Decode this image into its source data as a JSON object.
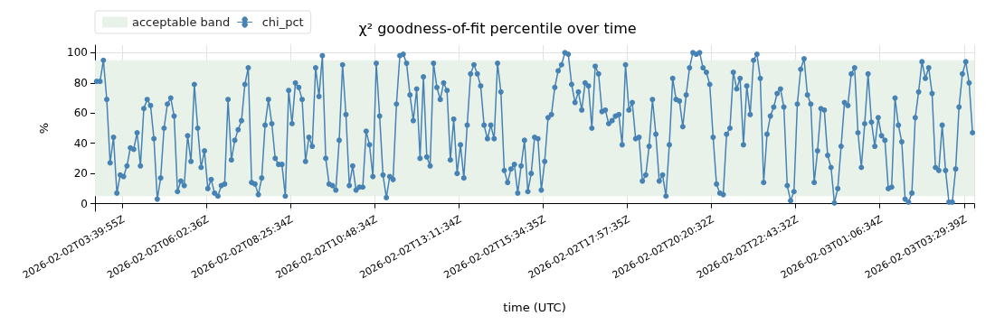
{
  "chart_data": {
    "type": "line",
    "title": "χ² goodness-of-fit percentile over time",
    "xlabel": "time (UTC)",
    "ylabel": "%",
    "categories": [
      null,
      null,
      null,
      null,
      null,
      null,
      null,
      null,
      "2026-02-02T03:39:55Z",
      null,
      null,
      null,
      null,
      null,
      null,
      null,
      null,
      null,
      null,
      null,
      null,
      null,
      null,
      null,
      null,
      null,
      null,
      null,
      null,
      null,
      null,
      null,
      null,
      "2026-02-02T06:02:36Z",
      null,
      null,
      null,
      null,
      null,
      null,
      null,
      null,
      null,
      null,
      null,
      null,
      null,
      null,
      null,
      null,
      null,
      null,
      null,
      null,
      null,
      null,
      null,
      null,
      "2026-02-02T08:25:34Z",
      null,
      null,
      null,
      null,
      null,
      null,
      null,
      null,
      null,
      null,
      null,
      null,
      null,
      null,
      null,
      null,
      null,
      null,
      null,
      null,
      null,
      null,
      null,
      null,
      "2026-02-02T10:48:34Z",
      null,
      null,
      null,
      null,
      null,
      null,
      null,
      null,
      null,
      null,
      null,
      null,
      null,
      null,
      null,
      null,
      null,
      null,
      null,
      null,
      null,
      null,
      null,
      null,
      "2026-02-02T13:11:34Z",
      null,
      null,
      null,
      null,
      null,
      null,
      null,
      null,
      null,
      null,
      null,
      null,
      null,
      null,
      null,
      null,
      null,
      null,
      null,
      null,
      null,
      null,
      null,
      null,
      "2026-02-02T15:34:35Z",
      null,
      null,
      null,
      null,
      null,
      null,
      null,
      null,
      null,
      null,
      null,
      null,
      null,
      null,
      null,
      null,
      null,
      null,
      null,
      null,
      null,
      null,
      null,
      null,
      "2026-02-02T17:57:35Z",
      null,
      null,
      null,
      null,
      null,
      null,
      null,
      null,
      null,
      null,
      null,
      null,
      null,
      null,
      null,
      null,
      null,
      null,
      null,
      null,
      null,
      null,
      null,
      null,
      "2026-02-02T20:20:32Z",
      null,
      null,
      null,
      null,
      null,
      null,
      null,
      null,
      null,
      null,
      null,
      null,
      null,
      null,
      null,
      null,
      null,
      null,
      null,
      null,
      null,
      null,
      null,
      null,
      "2026-02-02T22:43:32Z",
      null,
      null,
      null,
      null,
      null,
      null,
      null,
      null,
      null,
      null,
      null,
      null,
      null,
      null,
      null,
      null,
      null,
      null,
      null,
      null,
      null,
      null,
      null,
      null,
      "2026-02-03T01:06:34Z",
      null,
      null,
      null,
      null,
      null,
      null,
      null,
      null,
      null,
      null,
      null,
      null,
      null,
      null,
      null,
      null,
      null,
      null,
      null,
      null,
      null,
      null,
      null,
      null,
      "2026-02-03T03:29:39Z",
      null,
      null
    ],
    "series": [
      {
        "name": "chi_pct",
        "color": "#4682b4",
        "values": [
          81,
          81,
          95,
          69,
          27,
          44,
          7,
          19,
          18,
          25,
          37,
          36,
          47,
          25,
          63,
          69,
          65,
          43,
          3,
          17,
          50,
          66,
          70,
          58,
          8,
          15,
          12,
          45,
          28,
          79,
          50,
          24,
          35,
          10,
          16,
          7,
          5,
          12,
          13,
          69,
          29,
          42,
          49,
          55,
          79,
          90,
          14,
          13,
          6,
          17,
          52,
          69,
          53,
          30,
          26,
          26,
          5,
          75,
          53,
          80,
          77,
          69,
          28,
          44,
          38,
          90,
          71,
          98,
          30,
          13,
          12,
          9,
          42,
          92,
          59,
          12,
          25,
          9,
          11,
          11,
          48,
          39,
          18,
          93,
          58,
          19,
          4,
          18,
          16,
          66,
          98,
          99,
          93,
          72,
          55,
          76,
          30,
          84,
          31,
          25,
          93,
          77,
          69,
          80,
          75,
          29,
          56,
          20,
          39,
          17,
          52,
          86,
          92,
          86,
          78,
          52,
          43,
          52,
          43,
          93,
          74,
          22,
          14,
          23,
          26,
          7,
          25,
          42,
          8,
          20,
          44,
          43,
          9,
          28,
          57,
          59,
          77,
          88,
          92,
          100,
          99,
          79,
          67,
          74,
          62,
          80,
          78,
          50,
          91,
          86,
          61,
          62,
          53,
          55,
          58,
          59,
          39,
          92,
          62,
          67,
          43,
          44,
          15,
          19,
          38,
          69,
          46,
          15,
          19,
          5,
          39,
          83,
          69,
          68,
          51,
          72,
          90,
          100,
          99,
          100,
          90,
          87,
          79,
          44,
          13,
          7,
          6,
          46,
          50,
          87,
          76,
          83,
          39,
          78,
          59,
          95,
          99,
          83,
          14,
          46,
          58,
          64,
          73,
          76,
          64,
          12,
          2,
          8,
          66,
          89,
          96,
          72,
          66,
          14,
          35,
          63,
          62,
          32,
          24,
          0.5,
          10,
          38,
          67,
          65,
          86,
          90,
          47,
          24,
          53,
          86,
          54,
          38,
          57,
          45,
          42,
          10,
          11,
          70,
          52,
          41,
          3,
          1,
          7,
          57,
          74,
          94,
          83,
          90,
          73,
          24,
          22,
          52,
          22,
          1,
          1,
          23,
          64,
          86,
          94,
          80,
          47
        ]
      }
    ],
    "bands": [
      {
        "axis": "y",
        "from": 5,
        "to": 95,
        "label": "acceptable band",
        "color": "#e8f2e8"
      }
    ],
    "ylim": [
      -5,
      105
    ],
    "yticks": [
      0,
      20,
      40,
      60,
      80,
      100
    ],
    "grid": true,
    "legend": "top left",
    "marker": "circle",
    "line_style": "solid"
  }
}
